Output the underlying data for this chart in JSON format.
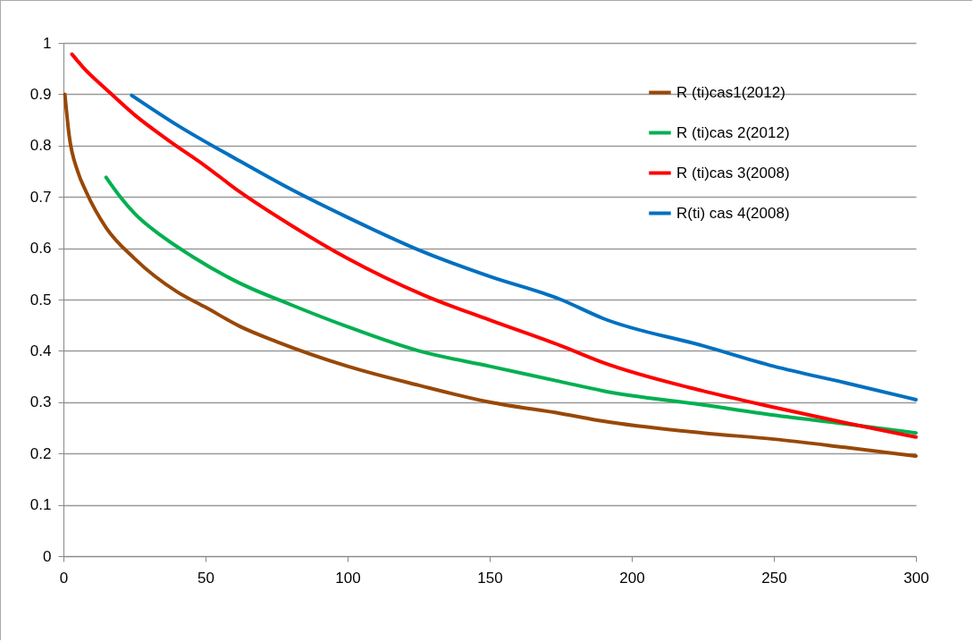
{
  "chart_data": {
    "type": "line",
    "xlim": [
      0,
      300
    ],
    "xticks": [
      0,
      50,
      100,
      150,
      200,
      250,
      300
    ],
    "ylim": [
      0,
      1
    ],
    "yticks": [
      0,
      0.1,
      0.2,
      0.3,
      0.4,
      0.5,
      0.6,
      0.7,
      0.8,
      0.9,
      1
    ],
    "grid": "y",
    "legend": "top right",
    "line_style": "solid",
    "marker": "none",
    "series": [
      {
        "name": "R (ti)cas1(2012)",
        "color": "#984807",
        "x": [
          0.5,
          2,
          5,
          8,
          15,
          25,
          40,
          50,
          62,
          75,
          100,
          125,
          150,
          175,
          190,
          225,
          250,
          275,
          300
        ],
        "values": [
          0.9,
          0.82,
          0.75,
          0.71,
          0.64,
          0.58,
          0.515,
          0.485,
          0.448,
          0.418,
          0.37,
          0.333,
          0.3,
          0.278,
          0.263,
          0.24,
          0.228,
          0.212,
          0.195
        ]
      },
      {
        "name": "R (ti)cas 2(2012)",
        "color": "#00b050",
        "x": [
          15,
          20,
          25,
          35,
          45,
          62,
          80,
          100,
          125,
          150,
          175,
          190,
          225,
          250,
          275,
          300
        ],
        "values": [
          0.738,
          0.7,
          0.668,
          0.622,
          0.585,
          0.532,
          0.49,
          0.447,
          0.4,
          0.37,
          0.34,
          0.322,
          0.295,
          0.275,
          0.258,
          0.24
        ]
      },
      {
        "name": "R (ti)cas 3(2008)",
        "color": "#ff0000",
        "x": [
          3,
          7,
          15,
          25,
          37,
          50,
          62,
          80,
          100,
          127,
          150,
          175,
          190,
          225,
          250,
          275,
          300
        ],
        "values": [
          0.978,
          0.952,
          0.91,
          0.86,
          0.81,
          0.76,
          0.71,
          0.645,
          0.58,
          0.508,
          0.46,
          0.41,
          0.377,
          0.322,
          0.29,
          0.26,
          0.232
        ]
      },
      {
        "name": "R(ti) cas 4(2008)",
        "color": "#0070c0",
        "x": [
          24,
          40,
          62,
          80,
          100,
          127,
          150,
          175,
          190,
          225,
          250,
          275,
          300
        ],
        "values": [
          0.898,
          0.84,
          0.77,
          0.715,
          0.66,
          0.592,
          0.545,
          0.5,
          0.463,
          0.41,
          0.37,
          0.338,
          0.305
        ]
      }
    ]
  }
}
